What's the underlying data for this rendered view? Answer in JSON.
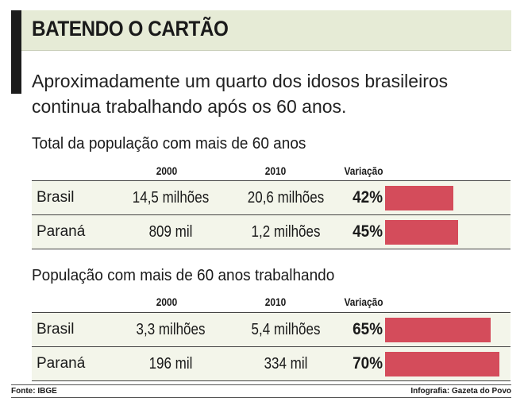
{
  "header": {
    "title": "BATENDO O CARTÃO",
    "subtitle": "Aproximadamente um quarto dos idosos brasileiros continua trabalhando após os 60 anos."
  },
  "colors": {
    "bar": "#d44c5b",
    "header_bg": "#e6ebd6",
    "row_bg": "#f3f5ea"
  },
  "chart_data": [
    {
      "type": "table",
      "title": "Total da população com mais de 60 anos",
      "columns": [
        "",
        "2000",
        "2010",
        "Variação"
      ],
      "rows": [
        {
          "name": "Brasil",
          "v2000": "14,5 milhões",
          "v2010": "20,6 milhões",
          "variation_label": "42%",
          "variation": 42
        },
        {
          "name": "Paraná",
          "v2000": "809 mil",
          "v2010": "1,2 milhões",
          "variation_label": "45%",
          "variation": 45
        }
      ]
    },
    {
      "type": "table",
      "title": "População com mais de 60 anos trabalhando",
      "columns": [
        "",
        "2000",
        "2010",
        "Variação"
      ],
      "rows": [
        {
          "name": "Brasil",
          "v2000": "3,3 milhões",
          "v2010": "5,4 milhões",
          "variation_label": "65%",
          "variation": 65
        },
        {
          "name": "Paraná",
          "v2000": "196 mil",
          "v2010": "334 mil",
          "variation_label": "70%",
          "variation": 70
        }
      ]
    }
  ],
  "footer": {
    "source": "Fonte: IBGE",
    "credit": "Infografia: Gazeta do Povo"
  }
}
